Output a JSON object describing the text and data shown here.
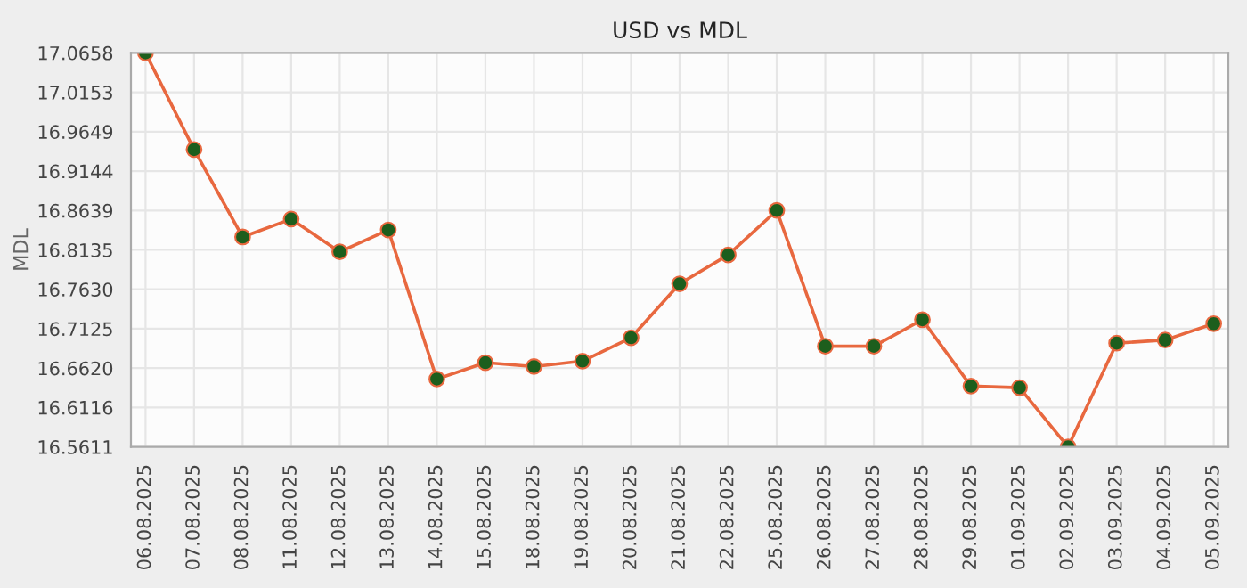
{
  "chart_data": {
    "type": "line",
    "title": "USD vs MDL",
    "ylabel": "MDL",
    "categories": [
      "06.08.2025",
      "07.08.2025",
      "08.08.2025",
      "11.08.2025",
      "12.08.2025",
      "13.08.2025",
      "14.08.2025",
      "15.08.2025",
      "18.08.2025",
      "19.08.2025",
      "20.08.2025",
      "21.08.2025",
      "22.08.2025",
      "25.08.2025",
      "26.08.2025",
      "27.08.2025",
      "28.08.2025",
      "29.08.2025",
      "01.09.2025",
      "02.09.2025",
      "03.09.2025",
      "04.09.2025",
      "05.09.2025"
    ],
    "series": [
      {
        "color": "#e8683f",
        "values": [
          17.0658,
          16.942,
          16.83,
          16.853,
          16.811,
          16.839,
          16.648,
          16.669,
          16.664,
          16.671,
          16.701,
          16.77,
          16.807,
          16.864,
          16.69,
          16.69,
          16.724,
          16.639,
          16.637,
          16.5611,
          16.694,
          16.698,
          16.719
        ]
      }
    ],
    "ylim": [
      16.5611,
      17.0658
    ],
    "yticks": [
      {
        "value": 16.5611,
        "label": "16.5611"
      },
      {
        "value": 16.6116,
        "label": "16.6116"
      },
      {
        "value": 16.662,
        "label": "16.6620"
      },
      {
        "value": 16.7125,
        "label": "16.7125"
      },
      {
        "value": 16.763,
        "label": "16.7630"
      },
      {
        "value": 16.8135,
        "label": "16.8135"
      },
      {
        "value": 16.8639,
        "label": "16.8639"
      },
      {
        "value": 16.9144,
        "label": "16.9144"
      },
      {
        "value": 16.9649,
        "label": "16.9649"
      },
      {
        "value": 17.0153,
        "label": "17.0153"
      },
      {
        "value": 17.0658,
        "label": "17.0658"
      }
    ],
    "grid": true,
    "marker": "circle",
    "line_style": "solid"
  }
}
